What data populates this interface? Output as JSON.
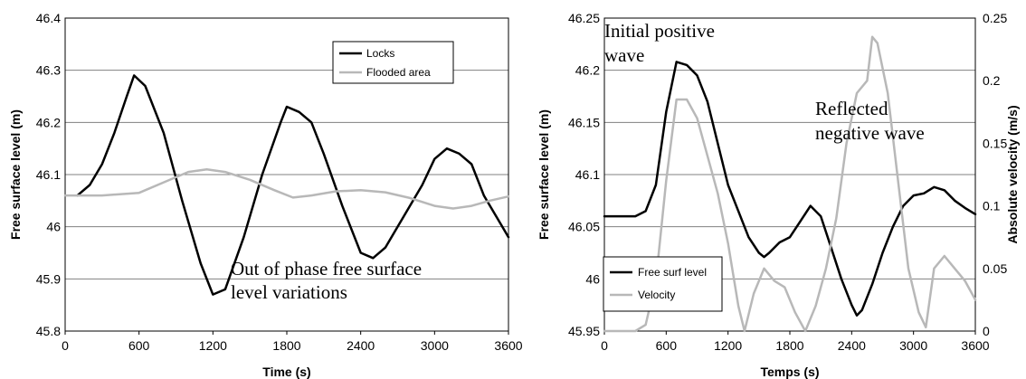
{
  "chart_data": [
    {
      "type": "line",
      "xlabel": "Time (s)",
      "ylabel": "Free surface level (m)",
      "xlim": [
        0,
        3600
      ],
      "ylim": [
        45.8,
        46.4
      ],
      "xticks": [
        "0",
        "600",
        "1200",
        "1800",
        "2400",
        "3000",
        "3600"
      ],
      "yticks": [
        "45.8",
        "45.9",
        "46",
        "46.1",
        "46.2",
        "46.3",
        "46.4"
      ],
      "grid": "horizontal",
      "legend": "top-right",
      "annotations": [
        "Out of phase free surface",
        "level variations"
      ],
      "series": [
        {
          "name": "Locks",
          "color": "#000000",
          "x": [
            100,
            200,
            300,
            400,
            500,
            560,
            650,
            800,
            950,
            1100,
            1200,
            1300,
            1450,
            1600,
            1750,
            1800,
            1900,
            2000,
            2100,
            2250,
            2400,
            2500,
            2600,
            2750,
            2900,
            3000,
            3100,
            3200,
            3300,
            3400,
            3500,
            3600
          ],
          "y": [
            46.06,
            46.08,
            46.12,
            46.18,
            46.25,
            46.29,
            46.27,
            46.18,
            46.05,
            45.93,
            45.87,
            45.88,
            45.98,
            46.1,
            46.2,
            46.23,
            46.22,
            46.2,
            46.14,
            46.04,
            45.95,
            45.94,
            45.96,
            46.02,
            46.08,
            46.13,
            46.15,
            46.14,
            46.12,
            46.06,
            46.02,
            45.98
          ]
        },
        {
          "name": "Flooded area",
          "color": "#b8b8b8",
          "x": [
            0,
            300,
            600,
            800,
            1000,
            1150,
            1300,
            1500,
            1700,
            1850,
            2000,
            2200,
            2400,
            2600,
            2800,
            3000,
            3150,
            3300,
            3450,
            3600
          ],
          "y": [
            46.06,
            46.06,
            46.065,
            46.085,
            46.105,
            46.11,
            46.105,
            46.09,
            46.07,
            46.056,
            46.06,
            46.068,
            46.07,
            46.066,
            46.055,
            46.04,
            46.035,
            46.04,
            46.05,
            46.058
          ]
        }
      ]
    },
    {
      "type": "line",
      "xlabel": "Temps (s)",
      "ylabel": "Free surface level (m)",
      "y2label": "Absolute velocity (m/s)",
      "xlim": [
        0,
        3600
      ],
      "ylim": [
        45.95,
        46.25
      ],
      "y2lim": [
        0,
        0.25
      ],
      "xticks": [
        "0",
        "600",
        "1200",
        "1800",
        "2400",
        "3000",
        "3600"
      ],
      "yticks": [
        "45.95",
        "46",
        "46.05",
        "46.1",
        "46.15",
        "46.2",
        "46.25"
      ],
      "y2ticks": [
        "0",
        "0.05",
        "0.1",
        "0.15",
        "0.2",
        "0.25"
      ],
      "grid": "horizontal",
      "legend": "bottom-left",
      "annotations": [
        {
          "lines": [
            "Initial positive",
            "wave"
          ]
        },
        {
          "lines": [
            "Reflected",
            "negative wave"
          ]
        }
      ],
      "series": [
        {
          "name": "Free surf level",
          "color": "#000000",
          "axis": "left",
          "x": [
            0,
            300,
            400,
            500,
            600,
            700,
            800,
            900,
            1000,
            1100,
            1200,
            1300,
            1400,
            1500,
            1550,
            1600,
            1700,
            1800,
            1900,
            2000,
            2100,
            2200,
            2300,
            2400,
            2450,
            2500,
            2600,
            2700,
            2800,
            2900,
            3000,
            3100,
            3200,
            3300,
            3400,
            3500,
            3600
          ],
          "y": [
            46.06,
            46.06,
            46.065,
            46.09,
            46.16,
            46.208,
            46.205,
            46.195,
            46.17,
            46.13,
            46.09,
            46.065,
            46.04,
            46.025,
            46.021,
            46.025,
            46.035,
            46.04,
            46.055,
            46.07,
            46.06,
            46.03,
            46.0,
            45.975,
            45.965,
            45.97,
            45.995,
            46.025,
            46.05,
            46.07,
            46.08,
            46.082,
            46.088,
            46.085,
            46.075,
            46.068,
            46.062
          ]
        },
        {
          "name": "Velocity",
          "color": "#b8b8b8",
          "axis": "right",
          "x": [
            0,
            300,
            400,
            500,
            600,
            700,
            800,
            900,
            1000,
            1100,
            1200,
            1300,
            1360,
            1450,
            1550,
            1650,
            1750,
            1850,
            1950,
            2050,
            2150,
            2250,
            2350,
            2450,
            2550,
            2600,
            2650,
            2750,
            2850,
            2950,
            3050,
            3120,
            3200,
            3300,
            3400,
            3500,
            3600
          ],
          "y": [
            0,
            0,
            0.005,
            0.04,
            0.12,
            0.185,
            0.185,
            0.17,
            0.14,
            0.11,
            0.07,
            0.02,
            0.0,
            0.03,
            0.05,
            0.04,
            0.035,
            0.015,
            0.0,
            0.02,
            0.05,
            0.09,
            0.15,
            0.19,
            0.2,
            0.235,
            0.23,
            0.19,
            0.12,
            0.05,
            0.015,
            0.003,
            0.05,
            0.06,
            0.05,
            0.04,
            0.025
          ]
        }
      ]
    }
  ]
}
